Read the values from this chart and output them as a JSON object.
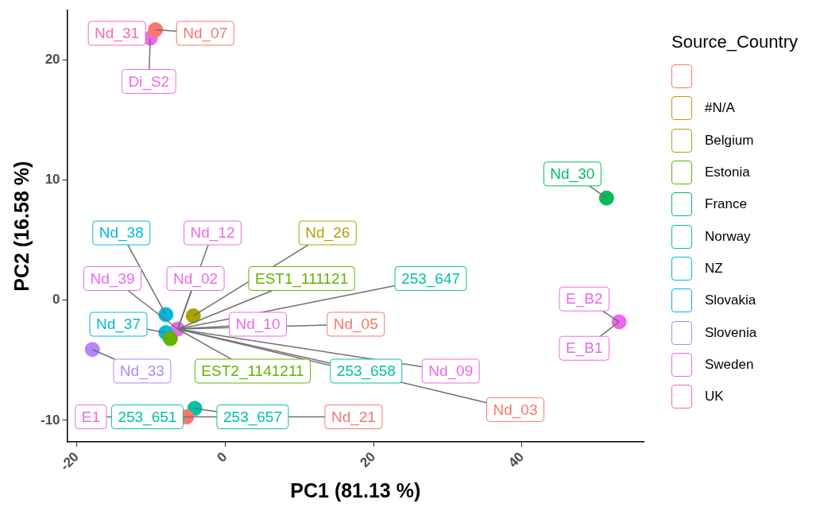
{
  "chart_data": {
    "type": "scatter",
    "xlabel": "PC1 (81.13 %)",
    "ylabel": "PC2 (16.58 %)",
    "legend_title": "Source_Country",
    "legend": "right",
    "grid": false,
    "marker": "circle",
    "xlim": [
      -21.3,
      56.4
    ],
    "ylim": [
      -11.8,
      24.1
    ],
    "xticks": [
      -20,
      0,
      20,
      40
    ],
    "yticks": [
      -10,
      0,
      10,
      20
    ],
    "series": [
      {
        "color": "#f8766d",
        "x": [
          -9.4,
          -5.2
        ],
        "values": [
          22.5,
          -9.7
        ]
      },
      {
        "name": "#N/A",
        "color": "#db8e00"
      },
      {
        "name": "Belgium",
        "color": "#aea200",
        "x": [
          -4.3
        ],
        "values": [
          -1.3
        ]
      },
      {
        "name": "Estonia",
        "color": "#64b200",
        "x": [
          -7.4
        ],
        "values": [
          -3.2
        ]
      },
      {
        "name": "France",
        "color": "#00bd5c",
        "x": [
          51.4
        ],
        "values": [
          8.5
        ]
      },
      {
        "name": "Norway",
        "color": "#00c1a7",
        "x": [
          -4.1
        ],
        "values": [
          -9.0
        ]
      },
      {
        "name": "NZ",
        "color": "#00bade",
        "x": [
          -8.0,
          -8.0
        ],
        "values": [
          -1.2,
          -2.7
        ]
      },
      {
        "name": "Slovakia",
        "color": "#00a6ff"
      },
      {
        "name": "Slovenia",
        "color": "#b385ff",
        "x": [
          -17.9
        ],
        "values": [
          -4.1
        ]
      },
      {
        "name": "Sweden",
        "color": "#ef67eb",
        "x": [
          -10.1,
          53.1,
          -6.4
        ],
        "values": [
          21.8,
          -1.8,
          -2.4
        ]
      },
      {
        "name": "UK",
        "color": "#ff63b6"
      }
    ],
    "annotations": [
      {
        "text": "Nd_31",
        "x": -9.9,
        "y": 22.2
      },
      {
        "text": "Nd_07",
        "x": -9.4,
        "y": 22.5
      },
      {
        "text": "Di_S2",
        "x": -10.1,
        "y": 21.8
      },
      {
        "text": "Nd_30",
        "x": 51.4,
        "y": 8.5
      },
      {
        "text": "E_B2",
        "x": 53.1,
        "y": -1.8
      },
      {
        "text": "E_B1",
        "x": 53.1,
        "y": -1.8
      },
      {
        "text": "Nd_38",
        "x": -8.0,
        "y": -1.2
      },
      {
        "text": "Nd_12",
        "x": -6.4,
        "y": -2.4
      },
      {
        "text": "Nd_26",
        "x": -4.3,
        "y": -1.3
      },
      {
        "text": "Nd_39",
        "x": -6.4,
        "y": -2.4
      },
      {
        "text": "Nd_02",
        "x": -6.4,
        "y": -2.4
      },
      {
        "text": "EST1_111121",
        "x": -6.4,
        "y": -2.4
      },
      {
        "text": "253_647",
        "x": -6.4,
        "y": -2.4
      },
      {
        "text": "Nd_37",
        "x": -8.0,
        "y": -2.7
      },
      {
        "text": "Nd_10",
        "x": -6.4,
        "y": -2.4
      },
      {
        "text": "Nd_05",
        "x": -6.4,
        "y": -2.4
      },
      {
        "text": "Nd_33",
        "x": -17.9,
        "y": -4.1
      },
      {
        "text": "EST2_1141211",
        "x": -6.4,
        "y": -2.4
      },
      {
        "text": "253_658",
        "x": -6.4,
        "y": -2.4
      },
      {
        "text": "Nd_09",
        "x": -6.4,
        "y": -2.4
      },
      {
        "text": "Nd_03",
        "x": -6.4,
        "y": -2.4
      },
      {
        "text": "E1",
        "x": -5.2,
        "y": -9.7
      },
      {
        "text": "253_651",
        "x": -5.2,
        "y": -9.7
      },
      {
        "text": "253_657",
        "x": -4.1,
        "y": -9.0
      },
      {
        "text": "Nd_21",
        "x": -5.2,
        "y": -9.7
      }
    ]
  }
}
